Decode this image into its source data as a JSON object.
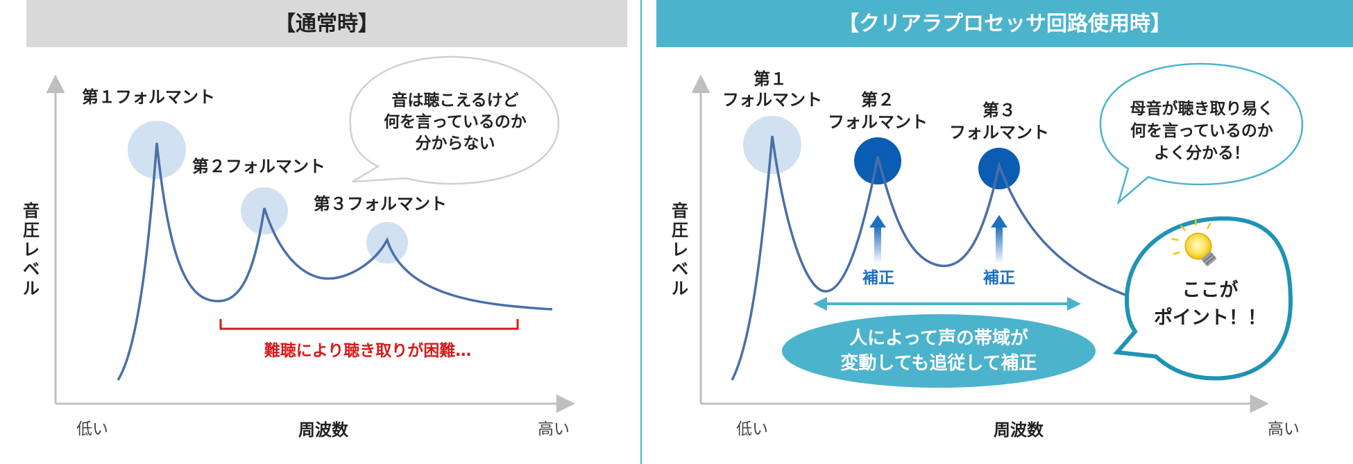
{
  "colors": {
    "left_header_bg": "#d9d9d9",
    "right_header_bg": "#4bb3cc",
    "curve": "#4a6fa8",
    "axis": "#bfbfbf",
    "formant_light": "#c5d9ee",
    "formant_dark": "#0b5cb3",
    "arrow_blue": "#1f6fc1",
    "red": "#d61a1a",
    "teal": "#4bb3cc",
    "divider": "#4bb3cc"
  },
  "left": {
    "title": "【通常時】",
    "formant1": "第１フォルマント",
    "formant2": "第２フォルマント",
    "formant3": "第３フォルマント",
    "bubble": [
      "音は聴こえるけど",
      "何を言っているのか",
      "分からない"
    ],
    "difficulty": "難聴により聴き取りが困難…",
    "y_axis_label": [
      "音",
      "圧",
      "レ",
      "ベ",
      "ル"
    ],
    "x_axis_label": "周波数",
    "x_low": "低い",
    "x_high": "高い"
  },
  "right": {
    "title": "【クリアラプロセッサ回路使用時】",
    "formant1": [
      "第１",
      "フォルマント"
    ],
    "formant2": [
      "第２",
      "フォルマント"
    ],
    "formant3": [
      "第３",
      "フォルマント"
    ],
    "correction_label": "補正",
    "bubble": [
      "母音が聴き取り易く",
      "何を言っているのか",
      "よく分かる！"
    ],
    "point": [
      "ここが",
      "ポイント！！"
    ],
    "band": [
      "人によって声の帯域が",
      "変動しても追従して補正"
    ],
    "y_axis_label": [
      "音",
      "圧",
      "レ",
      "ベ",
      "ル"
    ],
    "x_axis_label": "周波数",
    "x_low": "低い",
    "x_high": "高い",
    "icon": "lightbulb-icon"
  }
}
